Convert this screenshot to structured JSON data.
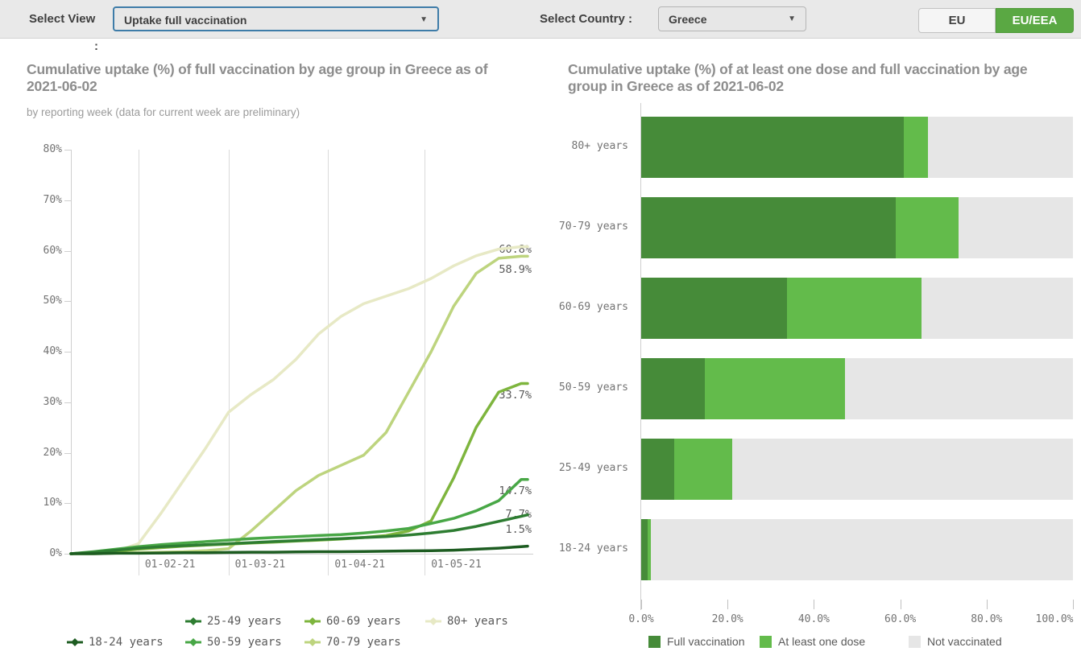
{
  "topbar": {
    "select_view_label": "Select View",
    "select_view_colon": ":",
    "select_view_value": "Uptake full vaccination",
    "select_country_label": "Select Country :",
    "select_country_value": "Greece",
    "eu_button_label": "EU",
    "eu_eea_button_label": "EU/EEA",
    "eu_eea_active_color": "#5aa843"
  },
  "chart_data": [
    {
      "type": "line",
      "title": "Cumulative uptake (%) of full vaccination by age group in Greece as of 2021-06-02",
      "subtitle": "by reporting week (data for current week are preliminary)",
      "ylim": [
        0,
        80
      ],
      "y_ticks": [
        "0%",
        "10%",
        "20%",
        "30%",
        "40%",
        "50%",
        "60%",
        "70%",
        "80%"
      ],
      "x_tick_labels": [
        "01-02-21",
        "01-03-21",
        "01-04-21",
        "01-05-21"
      ],
      "x_dates": [
        "11-01-21",
        "18-01-21",
        "25-01-21",
        "01-02-21",
        "08-02-21",
        "15-02-21",
        "22-02-21",
        "01-03-21",
        "08-03-21",
        "15-03-21",
        "22-03-21",
        "29-03-21",
        "05-04-21",
        "12-04-21",
        "19-04-21",
        "26-04-21",
        "03-05-21",
        "10-05-21",
        "17-05-21",
        "24-05-21",
        "31-05-21",
        "02-06-21"
      ],
      "series": [
        {
          "name": "80+ years",
          "color": "#e7e9c5",
          "end_label": "60.8%",
          "values": [
            0,
            0.1,
            0.5,
            2.0,
            8.0,
            14.5,
            21.0,
            28.0,
            31.5,
            34.5,
            38.5,
            43.5,
            47.0,
            49.5,
            51.0,
            52.5,
            54.5,
            57.0,
            59.0,
            60.3,
            60.8,
            60.8
          ]
        },
        {
          "name": "70-79 years",
          "color": "#bdd47e",
          "end_label": "58.9%",
          "values": [
            0,
            0,
            0.1,
            0.2,
            0.3,
            0.4,
            0.6,
            1.0,
            4.5,
            8.5,
            12.5,
            15.5,
            17.5,
            19.5,
            24.0,
            32.0,
            40.0,
            49.0,
            55.5,
            58.5,
            58.9,
            58.9
          ]
        },
        {
          "name": "60-69 years",
          "color": "#7eb53e",
          "end_label": "33.7%",
          "values": [
            0,
            0.2,
            0.5,
            0.9,
            1.2,
            1.5,
            1.7,
            1.9,
            2.1,
            2.3,
            2.5,
            2.7,
            2.9,
            3.2,
            3.6,
            4.5,
            6.5,
            15.0,
            25.0,
            32.0,
            33.7,
            33.7
          ]
        },
        {
          "name": "50-59 years",
          "color": "#48a746",
          "end_label": "14.7%",
          "values": [
            0,
            0.4,
            0.9,
            1.4,
            1.8,
            2.1,
            2.4,
            2.7,
            3.0,
            3.2,
            3.4,
            3.6,
            3.8,
            4.1,
            4.5,
            5.0,
            6.0,
            7.0,
            8.5,
            10.5,
            14.7,
            14.7
          ]
        },
        {
          "name": "25-49 years",
          "color": "#2e7d32",
          "end_label": "7.7%",
          "values": [
            0,
            0.3,
            0.7,
            1.1,
            1.4,
            1.6,
            1.8,
            2.0,
            2.2,
            2.4,
            2.6,
            2.8,
            3.0,
            3.2,
            3.4,
            3.7,
            4.1,
            4.6,
            5.4,
            6.4,
            7.4,
            7.7
          ]
        },
        {
          "name": "18-24 years",
          "color": "#1d5c21",
          "end_label": "1.5%",
          "values": [
            0,
            0,
            0.1,
            0.1,
            0.15,
            0.2,
            0.2,
            0.25,
            0.3,
            0.3,
            0.35,
            0.4,
            0.4,
            0.45,
            0.5,
            0.55,
            0.6,
            0.7,
            0.9,
            1.1,
            1.4,
            1.5
          ]
        }
      ],
      "legend_rows": [
        [
          "25-49 years",
          "60-69 years",
          "80+ years"
        ],
        [
          "18-24 years",
          "50-59 years",
          "70-79 years"
        ]
      ]
    },
    {
      "type": "bar",
      "orientation": "horizontal-stacked",
      "title": "Cumulative uptake (%) of at least one dose and full vaccination by age group in Greece as of 2021-06-02",
      "categories": [
        "80+ years",
        "70-79 years",
        "60-69 years",
        "50-59 years",
        "25-49 years",
        "18-24 years"
      ],
      "xlim": [
        0,
        100
      ],
      "x_ticks": [
        "0.0%",
        "20.0%",
        "40.0%",
        "60.0%",
        "80.0%",
        "100.0%"
      ],
      "series": [
        {
          "name": "Full vaccination",
          "color": "#468b39",
          "values": [
            60.8,
            58.9,
            33.7,
            14.7,
            7.7,
            1.5
          ]
        },
        {
          "name": "At least one dose",
          "color": "#63bb4b",
          "values": [
            5.6,
            14.6,
            31.2,
            32.6,
            13.4,
            0.7
          ]
        },
        {
          "name": "Not vaccinated",
          "color": "#e6e6e6",
          "values": [
            33.6,
            26.5,
            35.1,
            52.7,
            78.9,
            97.8
          ]
        }
      ],
      "legend": [
        "Full vaccination",
        "At least one dose",
        "Not vaccinated"
      ]
    }
  ]
}
